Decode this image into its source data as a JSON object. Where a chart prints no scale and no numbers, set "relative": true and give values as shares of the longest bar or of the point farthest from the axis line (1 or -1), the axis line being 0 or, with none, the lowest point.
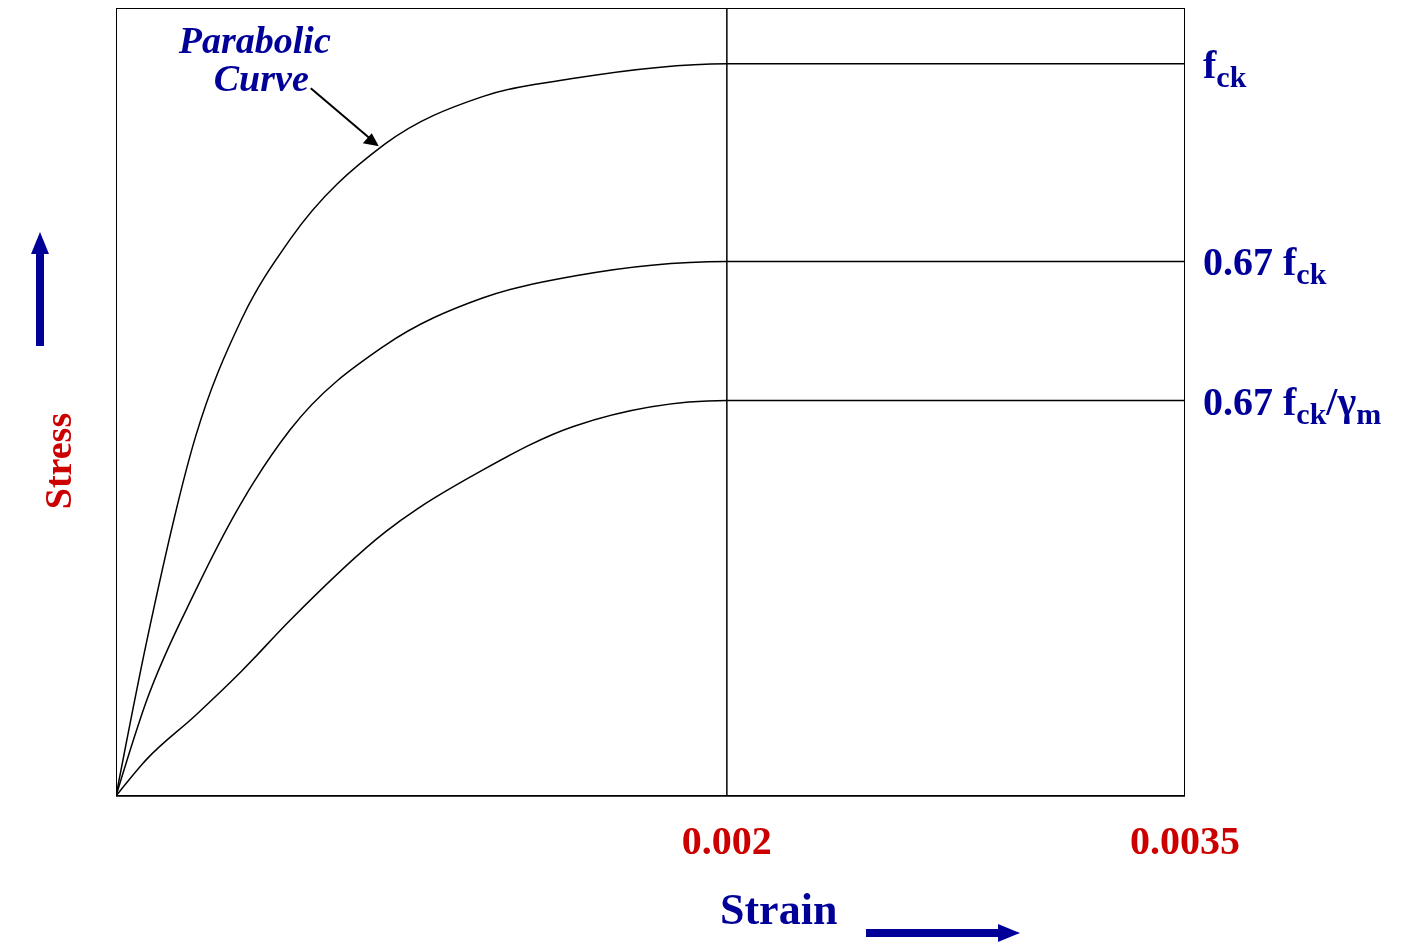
{
  "chart_data": {
    "type": "line",
    "relative": true,
    "xlabel": "Strain",
    "ylabel": "Stress",
    "x": [
      0,
      0.0001,
      0.00026,
      0.00041,
      0.00057,
      0.00088,
      0.0012,
      0.0015,
      0.002,
      0.0035
    ],
    "xlim": [
      0,
      0.0035
    ],
    "xticks": [
      0.002,
      0.0035
    ],
    "series": [
      {
        "name": "f$_{ck}$",
        "color": "#000000",
        "values": [
          0,
          0.21,
          0.49,
          0.65,
          0.76,
          0.89,
          0.955,
          0.98,
          1,
          1
        ]
      },
      {
        "name": "0.67 f$_{ck}$",
        "color": "#000000",
        "values": [
          0,
          0.13,
          0.28,
          0.4,
          0.5,
          0.615,
          0.68,
          0.71,
          0.73,
          0.73
        ]
      },
      {
        "name": "0.67 f$_{ck}$/γ$_{m}$",
        "color": "#000000",
        "values": [
          0,
          0.05,
          0.11,
          0.17,
          0.24,
          0.36,
          0.445,
          0.505,
          0.54,
          0.54
        ]
      }
    ],
    "ref_lines": [
      {
        "axis": "x",
        "value": 0.002,
        "color": "#000000"
      }
    ],
    "annotations": [
      "Parabolic Curve"
    ],
    "grid": false,
    "legend": false,
    "marker": "none",
    "line_style": "solid"
  }
}
